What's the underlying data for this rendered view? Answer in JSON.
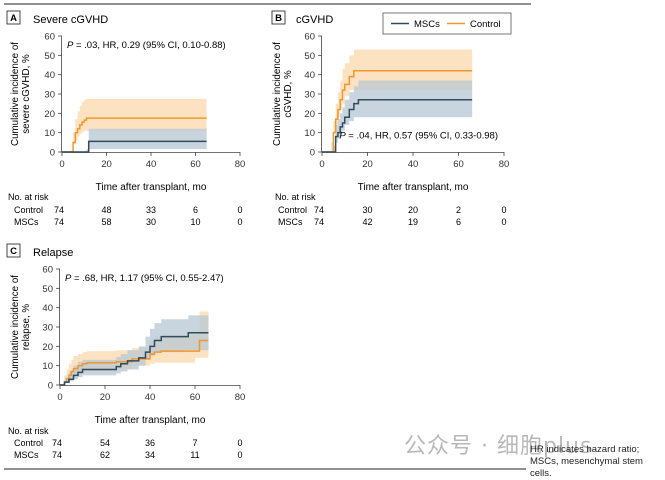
{
  "colors": {
    "msc": "#2f4b5c",
    "msc_band": "#b7c7d3",
    "control": "#f0982e",
    "control_band": "#fcd8ad",
    "axis": "#444444",
    "rule": "#222222"
  },
  "legend": {
    "msc": "MSCs",
    "control": "Control"
  },
  "chart_data": [
    {
      "type": "line",
      "step": true,
      "panel_letter": "A",
      "title": "Severe cGVHD",
      "xlabel": "Time after transplant, mo",
      "ylabel": [
        "Cumulative incidence of",
        "severe cGVHD, %"
      ],
      "xlim": [
        0,
        80
      ],
      "ylim": [
        0,
        60
      ],
      "x_ticks": [
        0,
        20,
        40,
        60,
        80
      ],
      "y_ticks": [
        0,
        10,
        20,
        30,
        40,
        50,
        60
      ],
      "annotation": {
        "p_label": "P",
        "text": " = .03, HR, 0.29 (95% CI, 0.10-0.88)",
        "position": "top-left"
      },
      "legend": false,
      "series": [
        {
          "name": "Control",
          "x": [
            0,
            4,
            5,
            6,
            7,
            8,
            9,
            10,
            11,
            65
          ],
          "y": [
            0,
            0,
            5,
            10,
            12,
            14,
            15.5,
            16.5,
            17.5,
            17.5
          ],
          "lower": [
            0,
            0,
            1,
            4,
            6,
            8,
            9.5,
            10.5,
            11,
            11
          ],
          "upper": [
            0,
            0,
            10,
            17,
            21,
            24,
            26,
            27,
            27.5,
            27.5
          ]
        },
        {
          "name": "MSCs",
          "x": [
            0,
            11,
            12,
            65
          ],
          "y": [
            0,
            0,
            5.5,
            5.5
          ],
          "lower": [
            0,
            0,
            1.5,
            1.5
          ],
          "upper": [
            0,
            0,
            12,
            12
          ]
        }
      ],
      "risk_table": {
        "title": "No. at risk",
        "times": [
          0,
          20,
          40,
          60,
          80
        ],
        "rows": [
          {
            "label": "Control",
            "values": [
              "74",
              "48",
              "33",
              "6",
              "0"
            ]
          },
          {
            "label": "MSCs",
            "values": [
              "74",
              "58",
              "30",
              "10",
              "0"
            ]
          }
        ]
      }
    },
    {
      "type": "line",
      "step": true,
      "panel_letter": "B",
      "title": "cGVHD",
      "xlabel": "Time after transplant, mo",
      "ylabel": [
        "Cumulative incidence of",
        "cGVHD, %"
      ],
      "xlim": [
        0,
        80
      ],
      "ylim": [
        0,
        60
      ],
      "x_ticks": [
        0,
        20,
        40,
        60,
        80
      ],
      "y_ticks": [
        0,
        10,
        20,
        30,
        40,
        50,
        60
      ],
      "annotation": {
        "p_label": "P",
        "text": " = .04, HR, 0.57 (95% CI, 0.33-0.98)",
        "position": "bottom-right"
      },
      "legend": true,
      "legend_position": "top-right",
      "series": [
        {
          "name": "Control",
          "x": [
            0,
            4,
            5,
            6,
            7,
            8,
            9,
            10,
            12,
            14,
            66
          ],
          "y": [
            0,
            0,
            10,
            17,
            22,
            27,
            32,
            35,
            39,
            42,
            42
          ],
          "lower": [
            0,
            0,
            5,
            10,
            14,
            18,
            22,
            25,
            29,
            32,
            32
          ],
          "upper": [
            0,
            0,
            16,
            25,
            31,
            37,
            43,
            46,
            50,
            53,
            53
          ]
        },
        {
          "name": "MSCs",
          "x": [
            0,
            5,
            6,
            7,
            8,
            9,
            10,
            12,
            14,
            16,
            66
          ],
          "y": [
            0,
            0,
            8,
            10,
            13,
            15,
            18,
            22,
            25,
            27,
            27
          ],
          "lower": [
            0,
            0,
            3,
            5,
            7,
            9,
            11,
            14,
            16,
            18,
            18
          ],
          "upper": [
            0,
            0,
            14,
            17,
            20,
            23,
            27,
            31,
            34,
            37,
            37
          ]
        }
      ],
      "risk_table": {
        "title": "No. at risk",
        "times": [
          0,
          20,
          40,
          60,
          80
        ],
        "rows": [
          {
            "label": "Control",
            "values": [
              "74",
              "30",
              "20",
              "2",
              "0"
            ]
          },
          {
            "label": "MSCs",
            "values": [
              "74",
              "42",
              "19",
              "6",
              "0"
            ]
          }
        ]
      }
    },
    {
      "type": "line",
      "step": true,
      "panel_letter": "C",
      "title": "Relapse",
      "xlabel": "Time after transplant, mo",
      "ylabel": [
        "Cumulative incidence of",
        "relapse, %"
      ],
      "xlim": [
        0,
        80
      ],
      "ylim": [
        0,
        60
      ],
      "x_ticks": [
        0,
        20,
        40,
        60,
        80
      ],
      "y_ticks": [
        0,
        10,
        20,
        30,
        40,
        50,
        60
      ],
      "annotation": {
        "p_label": "P",
        "text": " = .68, HR, 1.17 (95% CI, 0.55-2.47)",
        "position": "top-left"
      },
      "legend": false,
      "series": [
        {
          "name": "Control",
          "x": [
            0,
            2,
            3,
            4,
            5,
            6,
            8,
            10,
            12,
            25,
            32,
            40,
            42,
            45,
            60,
            62,
            66
          ],
          "y": [
            0,
            1.5,
            3,
            5,
            7,
            8.5,
            10,
            11,
            11.5,
            12,
            13.5,
            16,
            17,
            17.5,
            17.5,
            23,
            23
          ],
          "lower": [
            0,
            0,
            1,
            2,
            3,
            4,
            5,
            6,
            6.5,
            7,
            8,
            10,
            11,
            11.5,
            11.5,
            14,
            14
          ],
          "upper": [
            0,
            5,
            8,
            11,
            13,
            15,
            16,
            17,
            17.5,
            18,
            19,
            23,
            25,
            26,
            26,
            38,
            38
          ]
        },
        {
          "name": "MSCs",
          "x": [
            0,
            2,
            4,
            6,
            8,
            10,
            25,
            27,
            30,
            35,
            38,
            40,
            42,
            45,
            55,
            57,
            66
          ],
          "y": [
            0,
            1.5,
            3,
            5,
            6.5,
            8,
            9.5,
            11,
            12.5,
            14,
            17,
            20,
            23,
            25,
            25,
            27,
            27
          ],
          "lower": [
            0,
            0,
            1,
            2,
            3,
            4,
            5,
            6,
            7,
            8,
            10,
            13,
            15,
            17,
            17,
            18,
            18
          ],
          "upper": [
            0,
            4,
            7,
            10,
            12,
            13,
            14.5,
            16,
            18,
            20,
            25,
            29,
            32,
            34,
            34,
            36,
            36
          ]
        }
      ],
      "risk_table": {
        "title": "No. at risk",
        "times": [
          0,
          20,
          40,
          60,
          80
        ],
        "rows": [
          {
            "label": "Control",
            "values": [
              "74",
              "54",
              "36",
              "7",
              "0"
            ]
          },
          {
            "label": "MSCs",
            "values": [
              "74",
              "62",
              "34",
              "11",
              "0"
            ]
          }
        ]
      }
    }
  ],
  "watermark": "公众号 · 细胞plus",
  "footnote": "HR indicates hazard ratio; MSCs, mesenchymal stem cells."
}
